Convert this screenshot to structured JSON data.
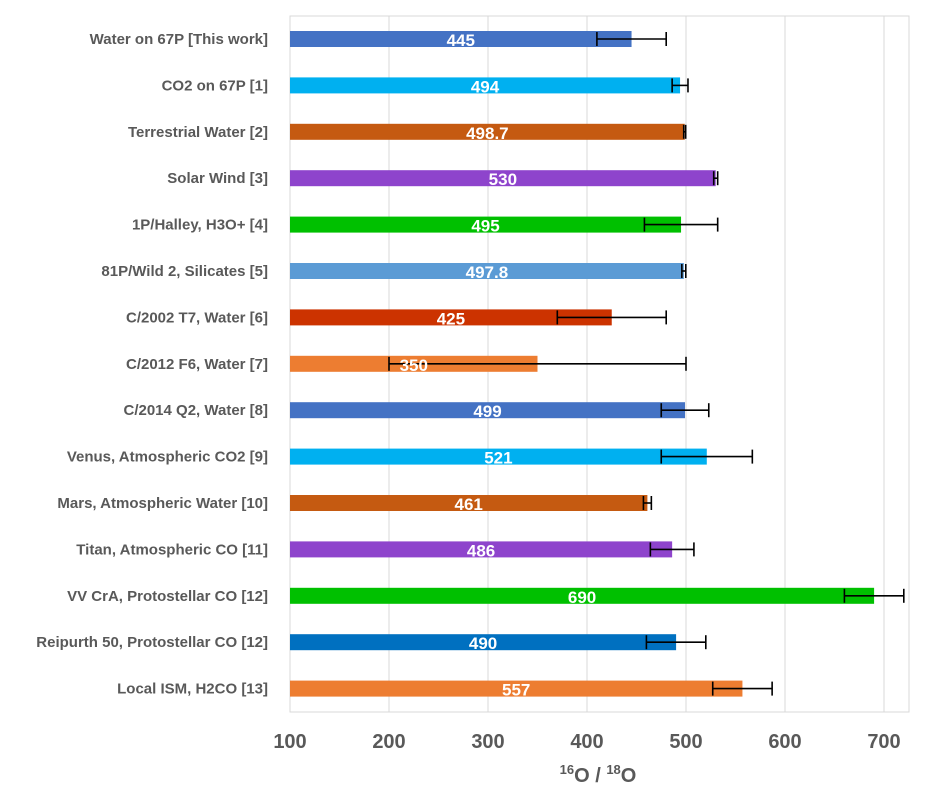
{
  "chart_data": {
    "type": "bar",
    "orientation": "horizontal",
    "title": "",
    "xlabel": {
      "iso1_mass": "16",
      "iso1_sym": "O",
      "separator": " / ",
      "iso2_mass": "18",
      "iso2_sym": "O"
    },
    "ylabel": "",
    "xlim": [
      100,
      720
    ],
    "xticks": [
      100,
      200,
      300,
      400,
      500,
      600,
      700
    ],
    "xtick_labels": [
      "100",
      "200",
      "300",
      "400",
      "500",
      "600",
      "700"
    ],
    "grid": true,
    "legend": "none",
    "categories": [
      "Water on 67P [This work]",
      "CO2 on 67P [1]",
      "Terrestrial Water [2]",
      "Solar Wind [3]",
      "1P/Halley, H3O+ [4]",
      "81P/Wild 2, Silicates [5]",
      "C/2002 T7, Water [6]",
      "C/2012 F6, Water [7]",
      "C/2014 Q2, Water [8]",
      "Venus, Atmospheric CO2 [9]",
      "Mars, Atmospheric Water [10]",
      "Titan, Atmospheric CO [11]",
      "VV CrA, Protostellar CO [12]",
      "Reipurth 50, Protostellar CO [12]",
      "Local ISM, H2CO [13]"
    ],
    "values": [
      445,
      494,
      498.7,
      530,
      495,
      497.8,
      425,
      350,
      499,
      521,
      461,
      486,
      690,
      490,
      557
    ],
    "value_labels": [
      "445",
      "494",
      "498.7",
      "530",
      "495",
      "497.8",
      "425",
      "350",
      "499",
      "521",
      "461",
      "486",
      "690",
      "490",
      "557"
    ],
    "errors": [
      35,
      8,
      1,
      2,
      37,
      2,
      55,
      150,
      24,
      46,
      4,
      22,
      30,
      30,
      30
    ],
    "colors": [
      "#4472C4",
      "#00B0F0",
      "#C55A11",
      "#8E44CC",
      "#00C000",
      "#5B9BD5",
      "#CC3300",
      "#ED7D31",
      "#4472C4",
      "#00B0F0",
      "#C55A11",
      "#8E44CC",
      "#00C000",
      "#0070C0",
      "#ED7D31"
    ]
  }
}
